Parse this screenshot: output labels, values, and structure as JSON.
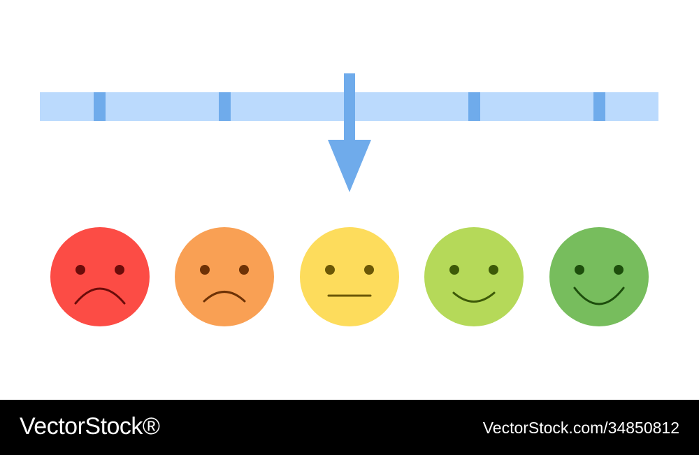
{
  "rating_scale": {
    "segments": 5,
    "selected_level": 3,
    "track_color": "#bbdafd",
    "marker_color": "#6fabeb",
    "arrow_color": "#6fabeb"
  },
  "faces": [
    {
      "id": "very-sad",
      "mood": "very dissatisfied",
      "color": "#fc4c45",
      "feature_color": "#6b0c0a",
      "mouth": "frown-deep"
    },
    {
      "id": "sad",
      "mood": "dissatisfied",
      "color": "#f9a054",
      "feature_color": "#6e3206",
      "mouth": "frown"
    },
    {
      "id": "neutral",
      "mood": "neutral",
      "color": "#fddc5c",
      "feature_color": "#6b5706",
      "mouth": "flat"
    },
    {
      "id": "happy",
      "mood": "satisfied",
      "color": "#b5d959",
      "feature_color": "#3d5a08",
      "mouth": "smile"
    },
    {
      "id": "very-happy",
      "mood": "very satisfied",
      "color": "#77bd5d",
      "feature_color": "#1d4e0c",
      "mouth": "smile-deep"
    }
  ],
  "footer": {
    "logo": "VectorStock®",
    "image_id": "VectorStock.com/34850812"
  }
}
